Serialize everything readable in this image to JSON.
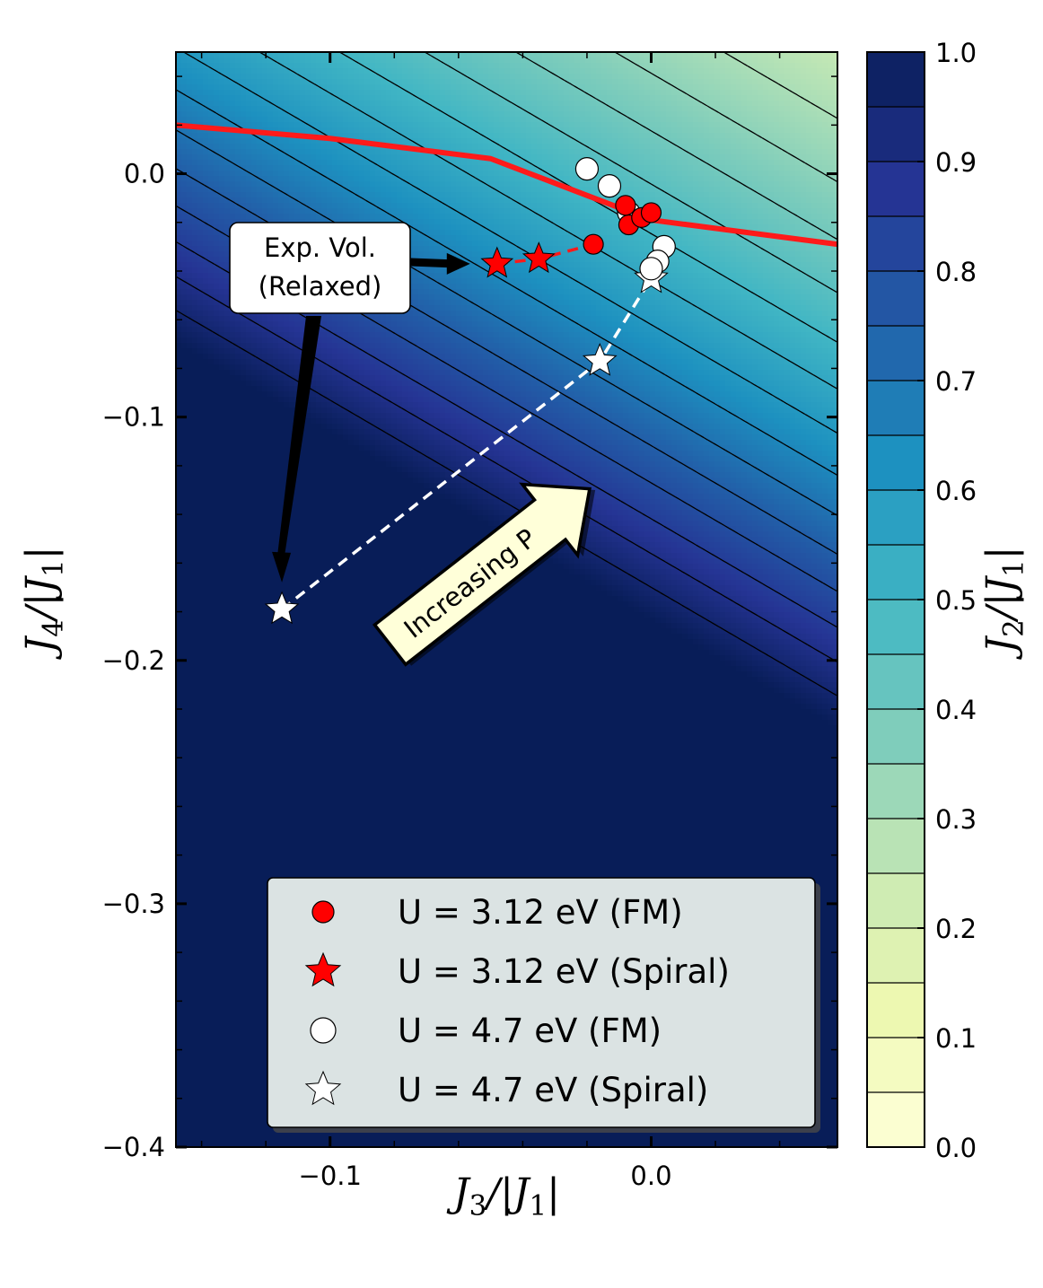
{
  "chart_data": {
    "type": "contour_scatter",
    "xlabel": "J_3/|J_1|",
    "ylabel": "J_4/|J_1|",
    "xlim": [
      -0.148,
      0.058
    ],
    "ylim": [
      -0.4,
      0.05
    ],
    "xticks": [
      {
        "value": -0.1,
        "label": "−0.1"
      },
      {
        "value": 0.0,
        "label": "0.0"
      }
    ],
    "yticks": [
      {
        "value": 0.0,
        "label": "0.0"
      },
      {
        "value": -0.1,
        "label": "−0.1"
      },
      {
        "value": -0.2,
        "label": "−0.2"
      },
      {
        "value": -0.3,
        "label": "−0.3"
      },
      {
        "value": -0.4,
        "label": "−0.4"
      }
    ],
    "colorbar": {
      "label": "J_2/|J_1|",
      "range": [
        0.0,
        1.0
      ],
      "ticks": [
        {
          "value": 0.0,
          "label": "0.0"
        },
        {
          "value": 0.1,
          "label": "0.1"
        },
        {
          "value": 0.2,
          "label": "0.2"
        },
        {
          "value": 0.3,
          "label": "0.3"
        },
        {
          "value": 0.4,
          "label": "0.4"
        },
        {
          "value": 0.5,
          "label": "0.5"
        },
        {
          "value": 0.6,
          "label": "0.6"
        },
        {
          "value": 0.7,
          "label": "0.7"
        },
        {
          "value": 0.8,
          "label": "0.8"
        },
        {
          "value": 0.9,
          "label": "0.9"
        },
        {
          "value": 1.0,
          "label": "1.0"
        }
      ],
      "levels": 20,
      "colormap": "YlGnBu"
    },
    "boundary_line": {
      "color": "#ff1a1a",
      "points": [
        [
          -0.148,
          0.02
        ],
        [
          -0.1,
          0.0145
        ],
        [
          -0.05,
          0.0062
        ],
        [
          0.0,
          -0.019
        ],
        [
          0.058,
          -0.029
        ]
      ]
    },
    "series": [
      {
        "name": "U = 3.12 eV (FM)",
        "marker": "circle",
        "color": "#ff0000",
        "points": [
          [
            -0.018,
            -0.029
          ],
          [
            -0.007,
            -0.021
          ],
          [
            -0.003,
            -0.018
          ],
          [
            0.0,
            -0.016
          ],
          [
            -0.008,
            -0.013
          ]
        ]
      },
      {
        "name": "U = 3.12 eV (Spiral)",
        "marker": "star",
        "color": "#ff0000",
        "points": [
          [
            -0.048,
            -0.037
          ],
          [
            -0.035,
            -0.035
          ]
        ]
      },
      {
        "name": "U = 4.7 eV (FM)",
        "marker": "circle",
        "color": "#ffffff",
        "points": [
          [
            -0.02,
            0.002
          ],
          [
            -0.013,
            -0.005
          ],
          [
            -0.007,
            -0.016
          ],
          [
            0.004,
            -0.03
          ],
          [
            0.002,
            -0.036
          ],
          [
            0.0,
            -0.039
          ]
        ]
      },
      {
        "name": "U = 4.7 eV (Spiral)",
        "marker": "star",
        "color": "#ffffff",
        "points": [
          [
            -0.115,
            -0.179
          ],
          [
            -0.016,
            -0.077
          ],
          [
            0.0,
            -0.043
          ]
        ]
      }
    ],
    "annotations": [
      {
        "text_lines": [
          "Exp. Vol.",
          "(Relaxed)"
        ]
      },
      {
        "text": "Increasing P"
      }
    ]
  }
}
